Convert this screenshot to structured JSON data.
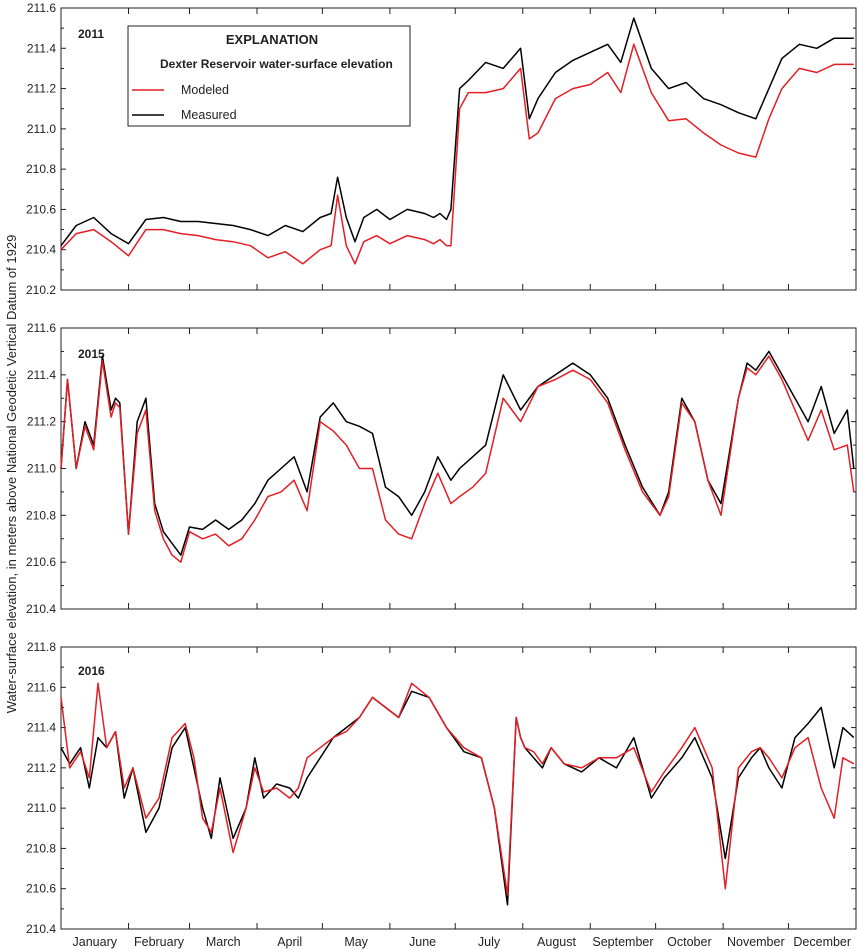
{
  "y_axis_label": "Water-surface elevation, in meters above National Geodetic Vertical Datum of 1929",
  "months": [
    "January",
    "February",
    "March",
    "April",
    "May",
    "June",
    "July",
    "August",
    "September",
    "October",
    "November",
    "December"
  ],
  "legend": {
    "title": "EXPLANATION",
    "subtitle": "Dexter Reservoir water-surface elevation",
    "items": [
      {
        "label": "Modeled",
        "color": "#e31e24"
      },
      {
        "label": "Measured",
        "color": "#000000"
      }
    ]
  },
  "chart_data": [
    {
      "type": "line",
      "year_label": "2011",
      "xlabel": "",
      "ylabel": "Water-surface elevation, in meters above National Geodetic Vertical Datum of 1929",
      "ylim": [
        210.2,
        211.6
      ],
      "yticks": [
        "210.2",
        "210.4",
        "210.6",
        "210.8",
        "211.0",
        "211.2",
        "211.4",
        "211.6"
      ],
      "x_unit": "day of year",
      "x": [
        1,
        8,
        16,
        24,
        32,
        40,
        48,
        56,
        64,
        72,
        80,
        88,
        96,
        104,
        112,
        120,
        125,
        128,
        132,
        136,
        140,
        146,
        152,
        160,
        168,
        172,
        175,
        178,
        180,
        184,
        188,
        196,
        204,
        212,
        216,
        220,
        228,
        236,
        244,
        252,
        258,
        264,
        272,
        280,
        288,
        296,
        304,
        312,
        320,
        326,
        332,
        340,
        348,
        356,
        365
      ],
      "series": [
        {
          "name": "Measured",
          "color": "#000000",
          "values": [
            210.42,
            210.52,
            210.56,
            210.48,
            210.43,
            210.55,
            210.56,
            210.54,
            210.54,
            210.53,
            210.52,
            210.5,
            210.47,
            210.52,
            210.49,
            210.56,
            210.58,
            210.76,
            210.56,
            210.44,
            210.56,
            210.6,
            210.55,
            210.6,
            210.58,
            210.56,
            210.58,
            210.55,
            210.6,
            211.2,
            211.24,
            211.33,
            211.3,
            211.4,
            211.05,
            211.15,
            211.28,
            211.34,
            211.38,
            211.42,
            211.33,
            211.55,
            211.3,
            211.2,
            211.23,
            211.15,
            211.12,
            211.08,
            211.05,
            211.2,
            211.35,
            211.42,
            211.4,
            211.45,
            211.45
          ]
        },
        {
          "name": "Modeled",
          "color": "#e31e24",
          "values": [
            210.4,
            210.48,
            210.5,
            210.44,
            210.37,
            210.5,
            210.5,
            210.48,
            210.47,
            210.45,
            210.44,
            210.42,
            210.36,
            210.39,
            210.33,
            210.4,
            210.42,
            210.67,
            210.42,
            210.33,
            210.44,
            210.47,
            210.43,
            210.47,
            210.45,
            210.43,
            210.45,
            210.42,
            210.42,
            211.1,
            211.18,
            211.18,
            211.2,
            211.3,
            210.95,
            210.98,
            211.15,
            211.2,
            211.22,
            211.28,
            211.18,
            211.42,
            211.18,
            211.04,
            211.05,
            210.98,
            210.92,
            210.88,
            210.86,
            211.05,
            211.2,
            211.3,
            211.28,
            211.32,
            211.32
          ]
        }
      ]
    },
    {
      "type": "line",
      "year_label": "2015",
      "xlabel": "",
      "ylabel": "Water-surface elevation, in meters above National Geodetic Vertical Datum of 1929",
      "ylim": [
        210.4,
        211.6
      ],
      "yticks": [
        "210.4",
        "210.6",
        "210.8",
        "211.0",
        "211.2",
        "211.4",
        "211.6"
      ],
      "x_unit": "day of year",
      "x": [
        1,
        4,
        8,
        12,
        16,
        20,
        24,
        26,
        28,
        32,
        36,
        40,
        44,
        48,
        52,
        56,
        60,
        66,
        72,
        78,
        84,
        90,
        96,
        102,
        108,
        114,
        120,
        126,
        132,
        138,
        144,
        150,
        156,
        162,
        168,
        174,
        180,
        184,
        190,
        196,
        204,
        212,
        220,
        228,
        236,
        244,
        252,
        260,
        268,
        276,
        280,
        286,
        292,
        298,
        304,
        312,
        316,
        320,
        326,
        332,
        338,
        344,
        350,
        356,
        362,
        365
      ],
      "series": [
        {
          "name": "Measured",
          "color": "#000000",
          "values": [
            211.0,
            211.38,
            211.0,
            211.2,
            211.1,
            211.48,
            211.25,
            211.3,
            211.28,
            210.72,
            211.2,
            211.3,
            210.85,
            210.73,
            210.68,
            210.63,
            210.75,
            210.74,
            210.78,
            210.74,
            210.78,
            210.85,
            210.95,
            211.0,
            211.05,
            210.9,
            211.22,
            211.28,
            211.2,
            211.18,
            211.15,
            210.92,
            210.88,
            210.8,
            210.9,
            211.05,
            210.95,
            211.0,
            211.05,
            211.1,
            211.4,
            211.25,
            211.35,
            211.4,
            211.45,
            211.4,
            211.3,
            211.1,
            210.92,
            210.8,
            210.9,
            211.3,
            211.2,
            210.95,
            210.85,
            211.3,
            211.45,
            211.42,
            211.5,
            211.4,
            211.3,
            211.2,
            211.35,
            211.15,
            211.25,
            211.0
          ]
        },
        {
          "name": "Modeled",
          "color": "#e31e24",
          "values": [
            211.0,
            211.38,
            211.0,
            211.18,
            211.08,
            211.46,
            211.22,
            211.28,
            211.26,
            210.72,
            211.15,
            211.25,
            210.82,
            210.7,
            210.63,
            210.6,
            210.73,
            210.7,
            210.72,
            210.67,
            210.7,
            210.78,
            210.88,
            210.9,
            210.95,
            210.82,
            211.2,
            211.16,
            211.1,
            211.0,
            211.0,
            210.78,
            210.72,
            210.7,
            210.85,
            210.98,
            210.85,
            210.88,
            210.92,
            210.98,
            211.3,
            211.2,
            211.35,
            211.38,
            211.42,
            211.38,
            211.28,
            211.08,
            210.9,
            210.8,
            210.88,
            211.28,
            211.2,
            210.95,
            210.8,
            211.3,
            211.43,
            211.4,
            211.48,
            211.38,
            211.25,
            211.12,
            211.25,
            211.08,
            211.1,
            210.9
          ]
        }
      ]
    },
    {
      "type": "line",
      "year_label": "2016",
      "xlabel": "",
      "ylabel": "Water-surface elevation, in meters above National Geodetic Vertical Datum of 1929",
      "ylim": [
        210.4,
        211.8
      ],
      "yticks": [
        "210.4",
        "210.6",
        "210.8",
        "211.0",
        "211.2",
        "211.4",
        "211.6",
        "211.8"
      ],
      "x_unit": "day of year",
      "x": [
        1,
        5,
        10,
        14,
        18,
        22,
        26,
        30,
        34,
        40,
        46,
        52,
        58,
        62,
        66,
        70,
        74,
        80,
        86,
        90,
        94,
        100,
        106,
        110,
        114,
        120,
        126,
        132,
        138,
        144,
        150,
        156,
        162,
        170,
        178,
        186,
        194,
        200,
        206,
        210,
        212,
        214,
        218,
        222,
        226,
        232,
        240,
        248,
        256,
        264,
        272,
        278,
        286,
        292,
        300,
        306,
        312,
        318,
        322,
        326,
        332,
        338,
        344,
        350,
        356,
        360,
        365
      ],
      "series": [
        {
          "name": "Measured",
          "color": "#000000",
          "values": [
            211.3,
            211.22,
            211.3,
            211.1,
            211.35,
            211.3,
            211.38,
            211.05,
            211.2,
            210.88,
            211.0,
            211.3,
            211.4,
            211.2,
            211.0,
            210.85,
            211.15,
            210.85,
            211.0,
            211.25,
            211.05,
            211.12,
            211.1,
            211.05,
            211.15,
            211.25,
            211.35,
            211.4,
            211.45,
            211.55,
            211.5,
            211.45,
            211.58,
            211.55,
            211.4,
            211.28,
            211.25,
            211.0,
            210.52,
            211.45,
            211.35,
            211.3,
            211.25,
            211.2,
            211.3,
            211.22,
            211.18,
            211.25,
            211.2,
            211.35,
            211.05,
            211.15,
            211.25,
            211.35,
            211.15,
            210.75,
            211.15,
            211.25,
            211.3,
            211.2,
            211.1,
            211.35,
            211.42,
            211.5,
            211.2,
            211.4,
            211.35
          ]
        },
        {
          "name": "Modeled",
          "color": "#e31e24",
          "values": [
            211.55,
            211.2,
            211.28,
            211.15,
            211.62,
            211.3,
            211.38,
            211.1,
            211.2,
            210.95,
            211.05,
            211.35,
            211.42,
            211.25,
            210.95,
            210.88,
            211.1,
            210.78,
            211.0,
            211.2,
            211.08,
            211.1,
            211.05,
            211.1,
            211.25,
            211.3,
            211.35,
            211.38,
            211.45,
            211.55,
            211.5,
            211.45,
            211.62,
            211.55,
            211.4,
            211.3,
            211.25,
            211.0,
            210.57,
            211.45,
            211.35,
            211.3,
            211.28,
            211.22,
            211.3,
            211.22,
            211.2,
            211.25,
            211.25,
            211.3,
            211.08,
            211.18,
            211.3,
            211.4,
            211.2,
            210.6,
            211.2,
            211.28,
            211.3,
            211.25,
            211.15,
            211.3,
            211.35,
            211.1,
            210.95,
            211.25,
            211.22
          ]
        }
      ]
    }
  ]
}
